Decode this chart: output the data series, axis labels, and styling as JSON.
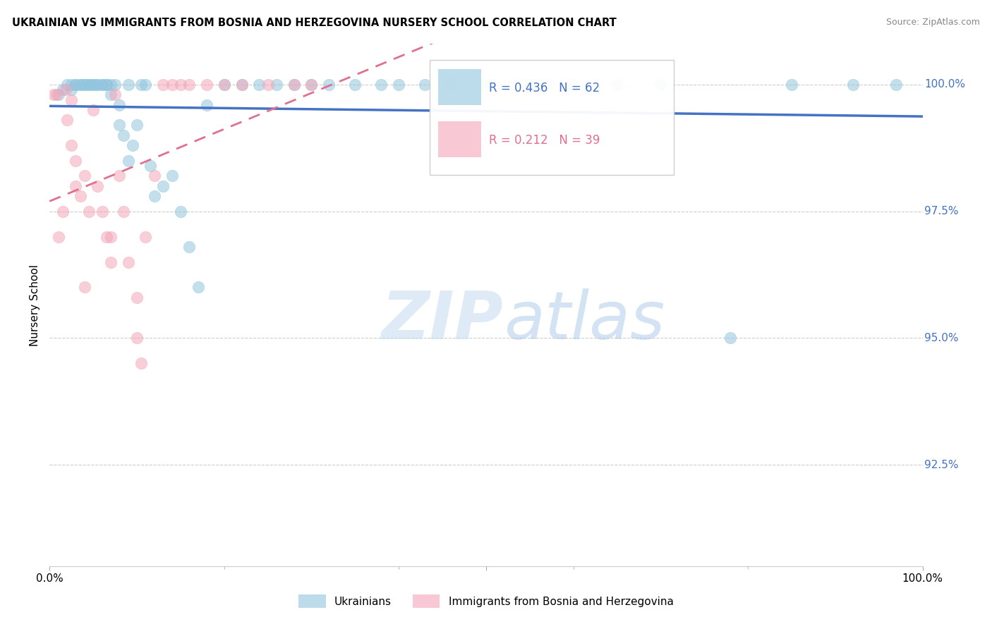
{
  "title": "UKRAINIAN VS IMMIGRANTS FROM BOSNIA AND HERZEGOVINA NURSERY SCHOOL CORRELATION CHART",
  "source": "Source: ZipAtlas.com",
  "ylabel": "Nursery School",
  "xlim": [
    0.0,
    1.0
  ],
  "ylim": [
    0.905,
    1.008
  ],
  "yticks": [
    0.925,
    0.95,
    0.975,
    1.0
  ],
  "ytick_labels": [
    "92.5%",
    "95.0%",
    "97.5%",
    "100.0%"
  ],
  "legend_blue_label": "Ukrainians",
  "legend_pink_label": "Immigrants from Bosnia and Herzegovina",
  "r_blue": 0.436,
  "n_blue": 62,
  "r_pink": 0.212,
  "n_pink": 39,
  "blue_color": "#92c5de",
  "pink_color": "#f4a6b8",
  "blue_line_color": "#4472c4",
  "pink_line_color": "#e07090",
  "blue_scatter_x": [
    0.01,
    0.015,
    0.02,
    0.025,
    0.025,
    0.03,
    0.03,
    0.035,
    0.035,
    0.04,
    0.04,
    0.045,
    0.045,
    0.05,
    0.05,
    0.055,
    0.055,
    0.06,
    0.06,
    0.065,
    0.065,
    0.07,
    0.07,
    0.075,
    0.08,
    0.08,
    0.085,
    0.09,
    0.09,
    0.095,
    0.1,
    0.105,
    0.11,
    0.115,
    0.12,
    0.13,
    0.14,
    0.15,
    0.16,
    0.17,
    0.18,
    0.2,
    0.22,
    0.24,
    0.26,
    0.28,
    0.3,
    0.32,
    0.35,
    0.38,
    0.4,
    0.43,
    0.46,
    0.5,
    0.55,
    0.6,
    0.65,
    0.7,
    0.78,
    0.85,
    0.92,
    0.97
  ],
  "blue_scatter_y": [
    0.998,
    0.999,
    1.0,
    1.0,
    0.999,
    1.0,
    1.0,
    1.0,
    1.0,
    1.0,
    1.0,
    1.0,
    1.0,
    1.0,
    1.0,
    1.0,
    1.0,
    1.0,
    1.0,
    1.0,
    1.0,
    1.0,
    0.998,
    1.0,
    0.996,
    0.992,
    0.99,
    1.0,
    0.985,
    0.988,
    0.992,
    1.0,
    1.0,
    0.984,
    0.978,
    0.98,
    0.982,
    0.975,
    0.968,
    0.96,
    0.996,
    1.0,
    1.0,
    1.0,
    1.0,
    1.0,
    1.0,
    1.0,
    1.0,
    1.0,
    1.0,
    1.0,
    1.0,
    1.0,
    1.0,
    1.0,
    1.0,
    1.0,
    0.95,
    1.0,
    1.0,
    1.0
  ],
  "pink_scatter_x": [
    0.005,
    0.008,
    0.01,
    0.015,
    0.018,
    0.02,
    0.025,
    0.025,
    0.03,
    0.03,
    0.035,
    0.04,
    0.04,
    0.045,
    0.05,
    0.055,
    0.06,
    0.065,
    0.07,
    0.07,
    0.075,
    0.08,
    0.085,
    0.09,
    0.1,
    0.1,
    0.105,
    0.11,
    0.12,
    0.13,
    0.14,
    0.15,
    0.16,
    0.18,
    0.2,
    0.22,
    0.25,
    0.28,
    0.3
  ],
  "pink_scatter_y": [
    0.998,
    0.998,
    0.97,
    0.975,
    0.999,
    0.993,
    0.997,
    0.988,
    0.985,
    0.98,
    0.978,
    0.982,
    0.96,
    0.975,
    0.995,
    0.98,
    0.975,
    0.97,
    0.97,
    0.965,
    0.998,
    0.982,
    0.975,
    0.965,
    0.958,
    0.95,
    0.945,
    0.97,
    0.982,
    1.0,
    1.0,
    1.0,
    1.0,
    1.0,
    1.0,
    1.0,
    1.0,
    1.0,
    1.0
  ],
  "watermark_zip": "ZIP",
  "watermark_atlas": "atlas",
  "background_color": "#ffffff",
  "grid_color": "#cccccc"
}
